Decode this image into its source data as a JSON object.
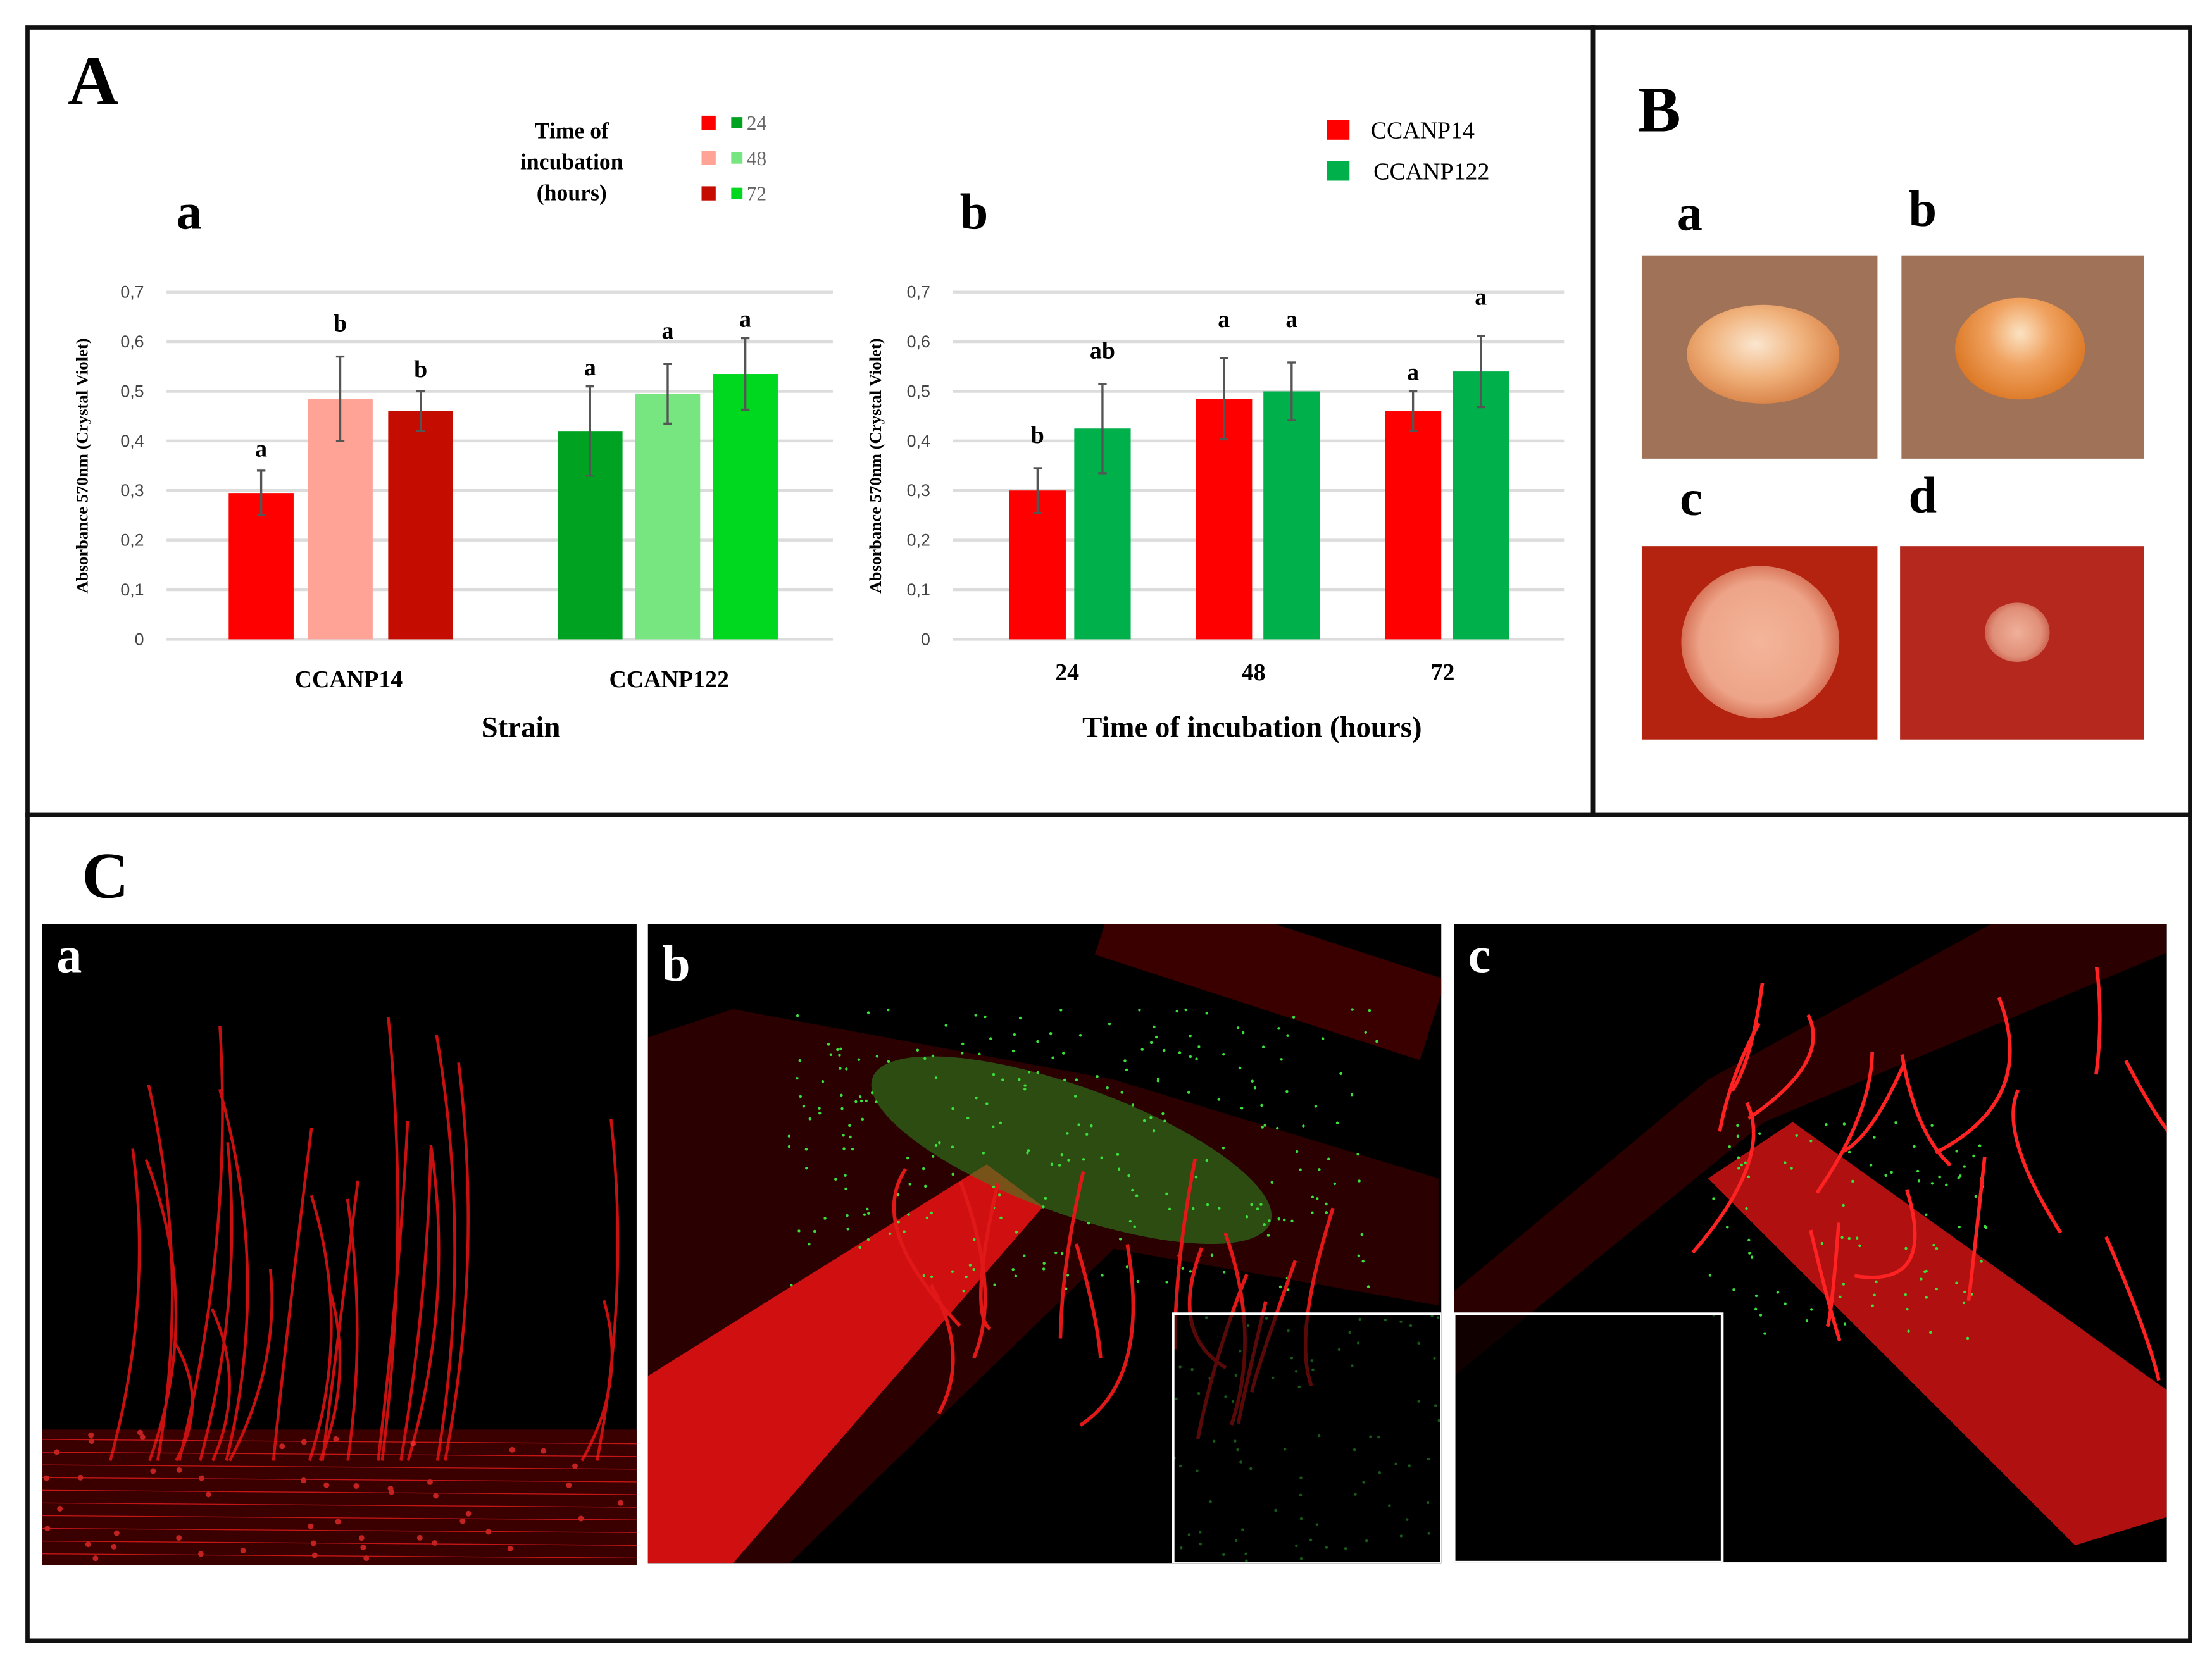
{
  "panels": {
    "A": "A",
    "B": "B",
    "C": "C"
  },
  "sublabels": {
    "A": [
      "a",
      "b"
    ],
    "B": [
      "a",
      "b",
      "c",
      "d"
    ],
    "C": [
      "a",
      "b",
      "c"
    ]
  },
  "chart_data": [
    {
      "type": "bar",
      "title": "a",
      "xlabel": "Strain",
      "ylabel": "Absorbance 570nm (Crystal Violet)",
      "ylim": [
        0,
        0.7
      ],
      "yticks": [
        "0",
        "0,1",
        "0,2",
        "0,3",
        "0,4",
        "0,5",
        "0,6",
        "0,7"
      ],
      "grid": true,
      "categories": [
        "CCANP14",
        "CCANP122"
      ],
      "legend": {
        "title_lines": [
          "Time of",
          "incubation",
          "(hours)"
        ],
        "placement": "top-center",
        "entries": [
          {
            "label": "24",
            "colors": [
              "#ff0000",
              "#00a321"
            ]
          },
          {
            "label": "48",
            "colors": [
              "#ffa396",
              "#77e680"
            ]
          },
          {
            "label": "72",
            "colors": [
              "#c40c00",
              "#00d71f"
            ]
          }
        ]
      },
      "series": [
        {
          "name": "24",
          "values": [
            0.295,
            0.42
          ],
          "errors": [
            0.045,
            0.09
          ],
          "letters": [
            "a",
            "a"
          ],
          "colors": [
            "#ff0000",
            "#00a321"
          ]
        },
        {
          "name": "48",
          "values": [
            0.485,
            0.495
          ],
          "errors": [
            0.085,
            0.06
          ],
          "letters": [
            "b",
            "a"
          ],
          "colors": [
            "#ffa396",
            "#77e680"
          ]
        },
        {
          "name": "72",
          "values": [
            0.46,
            0.535
          ],
          "errors": [
            0.04,
            0.072
          ],
          "letters": [
            "b",
            "a"
          ],
          "colors": [
            "#c40c00",
            "#00d71f"
          ]
        }
      ]
    },
    {
      "type": "bar",
      "title": "b",
      "xlabel": "Time of incubation (hours)",
      "ylabel": "Absorbance 570nm (Crystal Violet)",
      "ylim": [
        0,
        0.7
      ],
      "yticks": [
        "0",
        "0,1",
        "0,2",
        "0,3",
        "0,4",
        "0,5",
        "0,6",
        "0,7"
      ],
      "grid": true,
      "categories": [
        "24",
        "48",
        "72"
      ],
      "legend": {
        "placement": "top-right",
        "entries": [
          {
            "label": "CCANP14",
            "colors": [
              "#ff0000"
            ]
          },
          {
            "label": "CCANP122",
            "colors": [
              "#00b04a"
            ]
          }
        ]
      },
      "series": [
        {
          "name": "CCANP14",
          "values": [
            0.3,
            0.485,
            0.46
          ],
          "errors": [
            0.045,
            0.082,
            0.04
          ],
          "letters": [
            "b",
            "a",
            "a"
          ],
          "colors": [
            "#ff0000",
            "#ff0000",
            "#ff0000"
          ]
        },
        {
          "name": "CCANP122",
          "values": [
            0.425,
            0.5,
            0.54
          ],
          "errors": [
            0.09,
            0.058,
            0.072
          ],
          "letters": [
            "ab",
            "a",
            "a"
          ],
          "colors": [
            "#00b04a",
            "#00b04a",
            "#00b04a"
          ]
        }
      ]
    }
  ],
  "colors": {
    "agar_tan": "#9c6e57",
    "drop": "#e89a5a",
    "congo_red": "#b32014",
    "micro_red": "#ff1a1a",
    "micro_green": "#33dd33"
  }
}
